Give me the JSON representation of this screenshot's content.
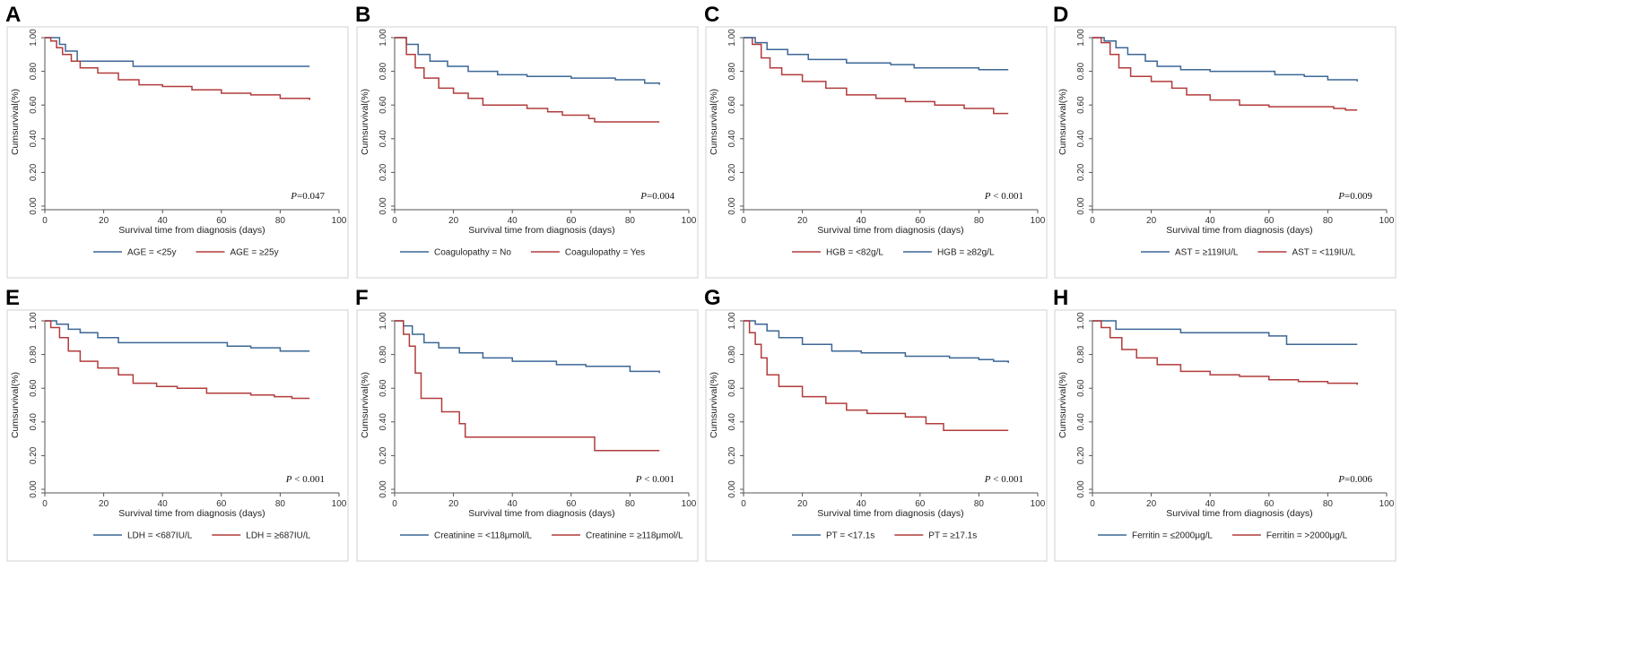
{
  "figure": {
    "colors": {
      "blue": "#3c6796",
      "red": "#b23b3b",
      "axis": "#555555",
      "frame": "#d0d0d0",
      "plotbg": "#ffffff",
      "legendbg": "#ffffff"
    }
  },
  "chart_data": [
    {
      "panel": "A",
      "type": "line",
      "xlabel": "Survival time from diagnosis (days)",
      "ylabel": "Cumsurvival(%)",
      "xlim": [
        0,
        100
      ],
      "ylim": [
        0,
        1
      ],
      "xticks": [
        "0",
        "20",
        "40",
        "60",
        "80",
        "100"
      ],
      "yticks": [
        "0.00",
        "0.20",
        "0.40",
        "0.60",
        "0.80",
        "1.00"
      ],
      "p_label": "P",
      "p_value": "=0.047",
      "series": [
        {
          "name": "AGE = <25y",
          "color": "blue",
          "points": [
            [
              0,
              1.0
            ],
            [
              3,
              1.0
            ],
            [
              5,
              0.96
            ],
            [
              7,
              0.92
            ],
            [
              11,
              0.86
            ],
            [
              30,
              0.86
            ],
            [
              30,
              0.83
            ],
            [
              90,
              0.83
            ]
          ]
        },
        {
          "name": "AGE = ≥25y",
          "color": "red",
          "points": [
            [
              0,
              1.0
            ],
            [
              2,
              0.98
            ],
            [
              4,
              0.94
            ],
            [
              6,
              0.9
            ],
            [
              9,
              0.86
            ],
            [
              12,
              0.82
            ],
            [
              18,
              0.79
            ],
            [
              25,
              0.75
            ],
            [
              32,
              0.72
            ],
            [
              40,
              0.71
            ],
            [
              50,
              0.69
            ],
            [
              60,
              0.67
            ],
            [
              70,
              0.66
            ],
            [
              80,
              0.64
            ],
            [
              90,
              0.63
            ]
          ]
        }
      ]
    },
    {
      "panel": "B",
      "type": "line",
      "xlabel": "Survival time from diagnosis (days)",
      "ylabel": "Cumsurvival(%)",
      "xlim": [
        0,
        100
      ],
      "ylim": [
        0,
        1
      ],
      "xticks": [
        "0",
        "20",
        "40",
        "60",
        "80",
        "100"
      ],
      "yticks": [
        "0.00",
        "0.20",
        "0.40",
        "0.60",
        "0.80",
        "1.00"
      ],
      "p_label": "P",
      "p_value": "=0.004",
      "series": [
        {
          "name": "Coagulopathy = No",
          "color": "blue",
          "points": [
            [
              0,
              1.0
            ],
            [
              4,
              0.96
            ],
            [
              8,
              0.9
            ],
            [
              12,
              0.86
            ],
            [
              18,
              0.83
            ],
            [
              25,
              0.8
            ],
            [
              35,
              0.78
            ],
            [
              45,
              0.77
            ],
            [
              60,
              0.76
            ],
            [
              75,
              0.75
            ],
            [
              85,
              0.73
            ],
            [
              90,
              0.72
            ]
          ]
        },
        {
          "name": "Coagulopathy = Yes",
          "color": "red",
          "points": [
            [
              0,
              1.0
            ],
            [
              4,
              0.9
            ],
            [
              7,
              0.82
            ],
            [
              10,
              0.76
            ],
            [
              15,
              0.7
            ],
            [
              20,
              0.67
            ],
            [
              25,
              0.64
            ],
            [
              30,
              0.6
            ],
            [
              42,
              0.6
            ],
            [
              45,
              0.58
            ],
            [
              52,
              0.56
            ],
            [
              57,
              0.54
            ],
            [
              66,
              0.52
            ],
            [
              68,
              0.5
            ],
            [
              90,
              0.5
            ]
          ]
        }
      ]
    },
    {
      "panel": "C",
      "type": "line",
      "xlabel": "Survival time from diagnosis (days)",
      "ylabel": "Cumsurvival(%)",
      "xlim": [
        0,
        100
      ],
      "ylim": [
        0,
        1
      ],
      "xticks": [
        "0",
        "20",
        "40",
        "60",
        "80",
        "100"
      ],
      "yticks": [
        "0.00",
        "0.20",
        "0.40",
        "0.60",
        "0.80",
        "1.00"
      ],
      "p_label": "P",
      "p_value": " < 0.001",
      "series": [
        {
          "name": "HGB = <82g/L",
          "color": "red",
          "points": [
            [
              0,
              1.0
            ],
            [
              3,
              0.96
            ],
            [
              6,
              0.88
            ],
            [
              9,
              0.82
            ],
            [
              13,
              0.78
            ],
            [
              20,
              0.74
            ],
            [
              28,
              0.7
            ],
            [
              35,
              0.66
            ],
            [
              45,
              0.64
            ],
            [
              55,
              0.62
            ],
            [
              65,
              0.6
            ],
            [
              75,
              0.58
            ],
            [
              85,
              0.55
            ],
            [
              90,
              0.55
            ]
          ]
        },
        {
          "name": "HGB = ≥82g/L",
          "color": "blue",
          "points": [
            [
              0,
              1.0
            ],
            [
              4,
              0.97
            ],
            [
              8,
              0.93
            ],
            [
              15,
              0.9
            ],
            [
              22,
              0.87
            ],
            [
              35,
              0.85
            ],
            [
              50,
              0.84
            ],
            [
              58,
              0.82
            ],
            [
              75,
              0.82
            ],
            [
              80,
              0.81
            ],
            [
              90,
              0.81
            ]
          ]
        }
      ]
    },
    {
      "panel": "D",
      "type": "line",
      "xlabel": "Survival time from diagnosis (days)",
      "ylabel": "Cumsurvival(%)",
      "xlim": [
        0,
        100
      ],
      "ylim": [
        0,
        1
      ],
      "xticks": [
        "0",
        "20",
        "40",
        "60",
        "80",
        "100"
      ],
      "yticks": [
        "0.00",
        "0.20",
        "0.40",
        "0.60",
        "0.80",
        "1.00"
      ],
      "p_label": "P",
      "p_value": "=0.009",
      "series": [
        {
          "name": "AST = ≥119IU/L",
          "color": "blue",
          "points": [
            [
              0,
              1.0
            ],
            [
              4,
              0.98
            ],
            [
              8,
              0.94
            ],
            [
              12,
              0.9
            ],
            [
              18,
              0.86
            ],
            [
              22,
              0.83
            ],
            [
              30,
              0.81
            ],
            [
              40,
              0.8
            ],
            [
              55,
              0.8
            ],
            [
              62,
              0.78
            ],
            [
              72,
              0.77
            ],
            [
              80,
              0.75
            ],
            [
              90,
              0.74
            ]
          ]
        },
        {
          "name": "AST = <119IU/L",
          "color": "red",
          "points": [
            [
              0,
              1.0
            ],
            [
              3,
              0.97
            ],
            [
              6,
              0.9
            ],
            [
              9,
              0.82
            ],
            [
              13,
              0.77
            ],
            [
              20,
              0.74
            ],
            [
              27,
              0.7
            ],
            [
              32,
              0.66
            ],
            [
              40,
              0.63
            ],
            [
              50,
              0.6
            ],
            [
              60,
              0.59
            ],
            [
              75,
              0.59
            ],
            [
              82,
              0.58
            ],
            [
              86,
              0.57
            ],
            [
              90,
              0.57
            ]
          ]
        }
      ]
    },
    {
      "panel": "E",
      "type": "line",
      "xlabel": "Survival time from diagnosis (days)",
      "ylabel": "Cumsurvival(%)",
      "xlim": [
        0,
        100
      ],
      "ylim": [
        0,
        1
      ],
      "xticks": [
        "0",
        "20",
        "40",
        "60",
        "80",
        "100"
      ],
      "yticks": [
        "0.00",
        "0.20",
        "0.40",
        "0.60",
        "0.80",
        "1.00"
      ],
      "p_label": "P",
      "p_value": " < 0.001",
      "series": [
        {
          "name": "LDH = <687IU/L",
          "color": "blue",
          "points": [
            [
              0,
              1.0
            ],
            [
              4,
              0.98
            ],
            [
              8,
              0.95
            ],
            [
              12,
              0.93
            ],
            [
              18,
              0.9
            ],
            [
              25,
              0.87
            ],
            [
              35,
              0.87
            ],
            [
              58,
              0.87
            ],
            [
              62,
              0.85
            ],
            [
              70,
              0.84
            ],
            [
              80,
              0.82
            ],
            [
              90,
              0.82
            ]
          ]
        },
        {
          "name": "LDH = ≥687IU/L",
          "color": "red",
          "points": [
            [
              0,
              1.0
            ],
            [
              2,
              0.96
            ],
            [
              5,
              0.9
            ],
            [
              8,
              0.82
            ],
            [
              12,
              0.76
            ],
            [
              18,
              0.72
            ],
            [
              25,
              0.68
            ],
            [
              30,
              0.63
            ],
            [
              38,
              0.61
            ],
            [
              45,
              0.6
            ],
            [
              55,
              0.57
            ],
            [
              70,
              0.56
            ],
            [
              78,
              0.55
            ],
            [
              84,
              0.54
            ],
            [
              90,
              0.54
            ]
          ]
        }
      ]
    },
    {
      "panel": "F",
      "type": "line",
      "xlabel": "Survival time from diagnosis (days)",
      "ylabel": "Cumsurvival(%)",
      "xlim": [
        0,
        100
      ],
      "ylim": [
        0,
        1
      ],
      "xticks": [
        "0",
        "20",
        "40",
        "60",
        "80",
        "100"
      ],
      "yticks": [
        "0.00",
        "0.20",
        "0.40",
        "0.60",
        "0.80",
        "1.00"
      ],
      "p_label": "P",
      "p_value": " < 0.001",
      "series": [
        {
          "name": "Creatinine = <118μmol/L",
          "color": "blue",
          "points": [
            [
              0,
              1.0
            ],
            [
              3,
              0.97
            ],
            [
              6,
              0.92
            ],
            [
              10,
              0.87
            ],
            [
              15,
              0.84
            ],
            [
              22,
              0.81
            ],
            [
              30,
              0.78
            ],
            [
              40,
              0.76
            ],
            [
              55,
              0.74
            ],
            [
              65,
              0.73
            ],
            [
              80,
              0.7
            ],
            [
              90,
              0.69
            ]
          ]
        },
        {
          "name": "Creatinine = ≥118μmol/L",
          "color": "red",
          "points": [
            [
              0,
              1.0
            ],
            [
              3,
              0.92
            ],
            [
              5,
              0.85
            ],
            [
              7,
              0.69
            ],
            [
              9,
              0.54
            ],
            [
              16,
              0.54
            ],
            [
              16,
              0.46
            ],
            [
              22,
              0.46
            ],
            [
              22,
              0.39
            ],
            [
              24,
              0.31
            ],
            [
              68,
              0.31
            ],
            [
              68,
              0.23
            ],
            [
              90,
              0.23
            ]
          ]
        }
      ]
    },
    {
      "panel": "G",
      "type": "line",
      "xlabel": "Survival time from diagnosis (days)",
      "ylabel": "Cumsurvival(%)",
      "xlim": [
        0,
        100
      ],
      "ylim": [
        0,
        1
      ],
      "xticks": [
        "0",
        "20",
        "40",
        "60",
        "80",
        "100"
      ],
      "yticks": [
        "0.00",
        "0.20",
        "0.40",
        "0.60",
        "0.80",
        "1.00"
      ],
      "p_label": "P",
      "p_value": " < 0.001",
      "series": [
        {
          "name": "PT = <17.1s",
          "color": "blue",
          "points": [
            [
              0,
              1.0
            ],
            [
              4,
              0.98
            ],
            [
              8,
              0.94
            ],
            [
              12,
              0.9
            ],
            [
              20,
              0.86
            ],
            [
              30,
              0.82
            ],
            [
              40,
              0.81
            ],
            [
              55,
              0.79
            ],
            [
              70,
              0.78
            ],
            [
              80,
              0.77
            ],
            [
              85,
              0.76
            ],
            [
              90,
              0.75
            ]
          ]
        },
        {
          "name": "PT = ≥17.1s",
          "color": "red",
          "points": [
            [
              0,
              1.0
            ],
            [
              2,
              0.93
            ],
            [
              4,
              0.86
            ],
            [
              6,
              0.78
            ],
            [
              8,
              0.68
            ],
            [
              12,
              0.61
            ],
            [
              20,
              0.55
            ],
            [
              28,
              0.51
            ],
            [
              35,
              0.47
            ],
            [
              42,
              0.45
            ],
            [
              55,
              0.43
            ],
            [
              62,
              0.39
            ],
            [
              68,
              0.35
            ],
            [
              90,
              0.35
            ]
          ]
        }
      ]
    },
    {
      "panel": "H",
      "type": "line",
      "xlabel": "Survival time from diagnosis (days)",
      "ylabel": "Cumsurvival(%)",
      "xlim": [
        0,
        100
      ],
      "ylim": [
        0,
        1
      ],
      "xticks": [
        "0",
        "20",
        "40",
        "60",
        "80",
        "100"
      ],
      "yticks": [
        "0.00",
        "0.20",
        "0.40",
        "0.60",
        "0.80",
        "1.00"
      ],
      "p_label": "P",
      "p_value": "=0.006",
      "series": [
        {
          "name": "Ferritin = ≤2000μg/L",
          "color": "blue",
          "points": [
            [
              0,
              1.0
            ],
            [
              8,
              1.0
            ],
            [
              8,
              0.95
            ],
            [
              30,
              0.95
            ],
            [
              30,
              0.93
            ],
            [
              60,
              0.93
            ],
            [
              60,
              0.91
            ],
            [
              66,
              0.91
            ],
            [
              66,
              0.86
            ],
            [
              90,
              0.86
            ]
          ]
        },
        {
          "name": "Ferritin = >2000μg/L",
          "color": "red",
          "points": [
            [
              0,
              1.0
            ],
            [
              3,
              0.96
            ],
            [
              6,
              0.9
            ],
            [
              10,
              0.83
            ],
            [
              15,
              0.78
            ],
            [
              22,
              0.74
            ],
            [
              30,
              0.7
            ],
            [
              40,
              0.68
            ],
            [
              50,
              0.67
            ],
            [
              60,
              0.65
            ],
            [
              70,
              0.64
            ],
            [
              80,
              0.63
            ],
            [
              90,
              0.62
            ]
          ]
        }
      ]
    }
  ]
}
